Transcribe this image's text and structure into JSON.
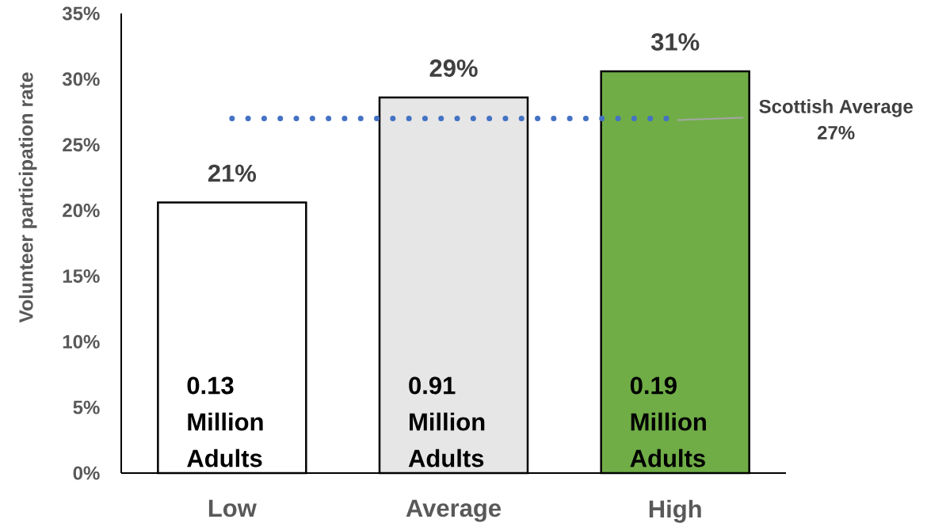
{
  "chart_data": {
    "type": "bar",
    "categories": [
      "Low",
      "Average",
      "High"
    ],
    "values": [
      20.6,
      28.6,
      30.6
    ],
    "colors": [
      "#ffffff",
      "#e6e6e6",
      "#70ad47"
    ],
    "value_labels": [
      "21%",
      "29%",
      "31%"
    ],
    "ylabel": "Volunteer participation rate",
    "ylim": [
      0,
      35
    ],
    "yticks": [
      {
        "value": 0,
        "label": "0%"
      },
      {
        "value": 5,
        "label": "5%"
      },
      {
        "value": 10,
        "label": "10%"
      },
      {
        "value": 15,
        "label": "15%"
      },
      {
        "value": 20,
        "label": "20%"
      },
      {
        "value": 25,
        "label": "25%"
      },
      {
        "value": 30,
        "label": "30%"
      },
      {
        "value": 35,
        "label": "35%"
      }
    ],
    "ref_lines": [
      {
        "axis": "y",
        "value": 27,
        "label": "Scottish Average 27%",
        "color": "#4472c4",
        "line_style": "dotted"
      }
    ],
    "annotations": [
      "0.13 Million Adults",
      "0.91 Million Adults",
      "0.19 Million Adults"
    ]
  }
}
